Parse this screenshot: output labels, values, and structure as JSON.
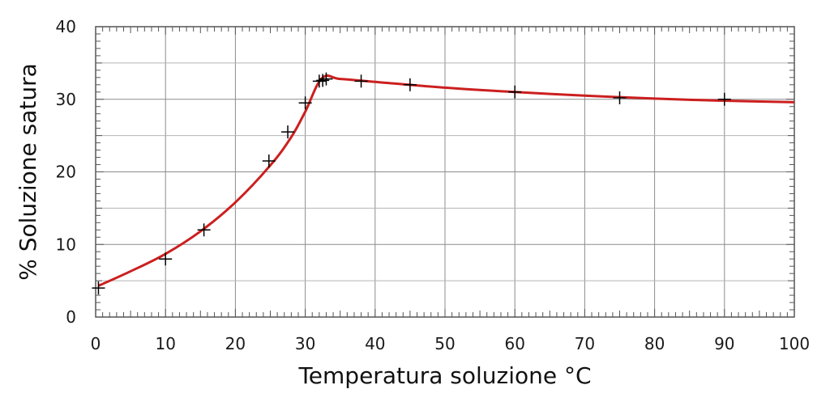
{
  "chart_data": {
    "type": "line",
    "title": "",
    "xlabel": "Temperatura soluzione °C",
    "ylabel": "% Soluzione satura",
    "xlim": [
      0,
      100
    ],
    "ylim": [
      0,
      40
    ],
    "x_ticks": [
      0,
      10,
      20,
      30,
      40,
      50,
      60,
      70,
      80,
      90,
      100
    ],
    "x_tick_labels": [
      "0",
      "10",
      "20",
      "30",
      "40",
      "50",
      "60",
      "70",
      "80",
      "90",
      "100"
    ],
    "y_ticks": [
      0,
      10,
      20,
      30,
      40
    ],
    "y_tick_labels": [
      "0",
      "10",
      "20",
      "30",
      "40"
    ],
    "grid": true,
    "colors": {
      "curve": "#cc1f1f",
      "markers": "#000000",
      "grid": "#8c8c8c",
      "frame": "#555555"
    },
    "series": [
      {
        "type": "scatter",
        "marker": "plus",
        "x": [
          0.4,
          10,
          15.5,
          24.8,
          27.5,
          30,
          32,
          32.5,
          33,
          38,
          45,
          60,
          75,
          90
        ],
        "y": [
          4,
          8,
          12,
          21.5,
          25.5,
          29.5,
          32.5,
          32.6,
          32.8,
          32.5,
          32,
          31,
          30.2,
          30
        ]
      },
      {
        "type": "line",
        "x": [
          0.4,
          5,
          10,
          15,
          20,
          25,
          28,
          30,
          32.4,
          35,
          40,
          50,
          60,
          70,
          80,
          90,
          100
        ],
        "y": [
          4.3,
          6.3,
          8.7,
          11.8,
          15.8,
          20.9,
          24.8,
          28.3,
          32.9,
          32.8,
          32.4,
          31.6,
          31.0,
          30.5,
          30.1,
          29.8,
          29.6
        ]
      }
    ]
  }
}
